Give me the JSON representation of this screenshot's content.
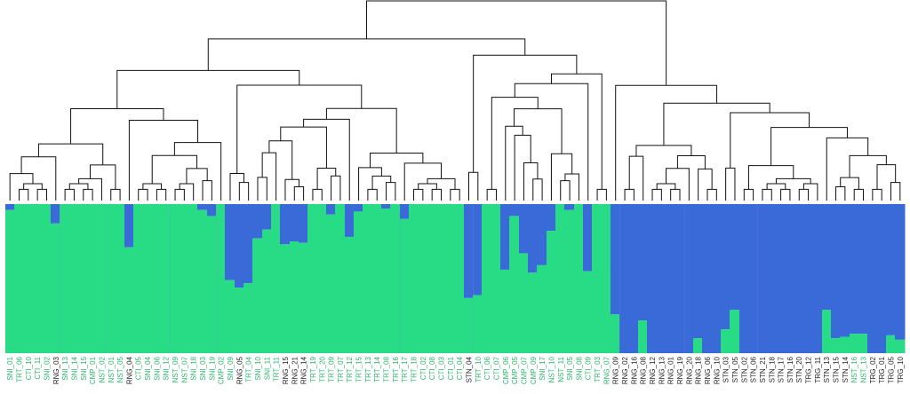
{
  "colors": {
    "green": "#27DC84",
    "blue": "#3A6AD8",
    "label_green": "#2BB56B",
    "label_black": "#222222",
    "tree": "#111111",
    "separator": "#6f8fd6"
  },
  "chart_data": {
    "type": "bar",
    "orientation": "stacked-admixture-with-dendrogram",
    "series": [
      {
        "name": "",
        "color": "#27DC84"
      },
      {
        "name": "",
        "color": "#3A6AD8"
      }
    ],
    "groups": [
      6,
      11,
      18,
      23,
      43,
      51,
      67,
      74,
      82
    ],
    "individuals": [
      {
        "label": "SNI_01",
        "blue": 0.04,
        "color": "green"
      },
      {
        "label": "TRT_06",
        "blue": 0.0,
        "color": "green"
      },
      {
        "label": "CTI_10",
        "blue": 0.0,
        "color": "green"
      },
      {
        "label": "CTI_11",
        "blue": 0.0,
        "color": "green"
      },
      {
        "label": "SNI_02",
        "blue": 0.0,
        "color": "green"
      },
      {
        "label": "RNG_03",
        "blue": 0.13,
        "color": "black"
      },
      {
        "label": "SNI_13",
        "blue": 0.0,
        "color": "green"
      },
      {
        "label": "SNI_14",
        "blue": 0.0,
        "color": "green"
      },
      {
        "label": "SNI_15",
        "blue": 0.0,
        "color": "green"
      },
      {
        "label": "CMP_01",
        "blue": 0.0,
        "color": "green"
      },
      {
        "label": "NST_02",
        "blue": 0.0,
        "color": "green"
      },
      {
        "label": "NST_01",
        "blue": 0.0,
        "color": "green"
      },
      {
        "label": "NST_05",
        "blue": 0.0,
        "color": "green"
      },
      {
        "label": "RNG_04",
        "blue": 0.29,
        "color": "black"
      },
      {
        "label": "CTI_05",
        "blue": 0.0,
        "color": "green"
      },
      {
        "label": "SNI_04",
        "blue": 0.0,
        "color": "green"
      },
      {
        "label": "SNI_06",
        "blue": 0.0,
        "color": "green"
      },
      {
        "label": "SNI_12",
        "blue": 0.0,
        "color": "green"
      },
      {
        "label": "NST_09",
        "blue": 0.0,
        "color": "green"
      },
      {
        "label": "NST_07",
        "blue": 0.0,
        "color": "green"
      },
      {
        "label": "SNI_18",
        "blue": 0.0,
        "color": "green"
      },
      {
        "label": "SNI_03",
        "blue": 0.04,
        "color": "green"
      },
      {
        "label": "SNI_19",
        "blue": 0.08,
        "color": "green"
      },
      {
        "label": "CMP_02",
        "blue": 0.0,
        "color": "green"
      },
      {
        "label": "SNI_09",
        "blue": 0.51,
        "color": "green"
      },
      {
        "label": "RNG_05",
        "blue": 0.56,
        "color": "black"
      },
      {
        "label": "TRT_04",
        "blue": 0.53,
        "color": "green"
      },
      {
        "label": "SNI_10",
        "blue": 0.23,
        "color": "green"
      },
      {
        "label": "SNI_11",
        "blue": 0.17,
        "color": "green"
      },
      {
        "label": "TRT_11",
        "blue": 0.0,
        "color": "green"
      },
      {
        "label": "RNG_15",
        "blue": 0.27,
        "color": "black"
      },
      {
        "label": "RNG_21",
        "blue": 0.25,
        "color": "black"
      },
      {
        "label": "RNG_14",
        "blue": 0.26,
        "color": "black"
      },
      {
        "label": "TRT_19",
        "blue": 0.0,
        "color": "green"
      },
      {
        "label": "TRT_20",
        "blue": 0.0,
        "color": "green"
      },
      {
        "label": "TRT_09",
        "blue": 0.07,
        "color": "green"
      },
      {
        "label": "TRT_07",
        "blue": 0.0,
        "color": "green"
      },
      {
        "label": "TRT_12",
        "blue": 0.22,
        "color": "green"
      },
      {
        "label": "TRT_15",
        "blue": 0.05,
        "color": "green"
      },
      {
        "label": "TRT_13",
        "blue": 0.0,
        "color": "green"
      },
      {
        "label": "TRT_14",
        "blue": 0.0,
        "color": "green"
      },
      {
        "label": "TRT_08",
        "blue": 0.03,
        "color": "green"
      },
      {
        "label": "TRT_16",
        "blue": 0.0,
        "color": "green"
      },
      {
        "label": "TRT_17",
        "blue": 0.1,
        "color": "green"
      },
      {
        "label": "TRT_18",
        "blue": 0.0,
        "color": "green"
      },
      {
        "label": "CTI_02",
        "blue": 0.0,
        "color": "green"
      },
      {
        "label": "CTI_08",
        "blue": 0.0,
        "color": "green"
      },
      {
        "label": "CTI_03",
        "blue": 0.0,
        "color": "green"
      },
      {
        "label": "CTI_01",
        "blue": 0.0,
        "color": "green"
      },
      {
        "label": "CTI_04",
        "blue": 0.0,
        "color": "green"
      },
      {
        "label": "STN_04",
        "blue": 0.63,
        "color": "black"
      },
      {
        "label": "TRT_10",
        "blue": 0.61,
        "color": "green"
      },
      {
        "label": "CTI_06",
        "blue": 0.0,
        "color": "green"
      },
      {
        "label": "CTI_07",
        "blue": 0.0,
        "color": "green"
      },
      {
        "label": "CMP_06",
        "blue": 0.44,
        "color": "green"
      },
      {
        "label": "CMP_05",
        "blue": 0.08,
        "color": "green"
      },
      {
        "label": "CMP_07",
        "blue": 0.33,
        "color": "green"
      },
      {
        "label": "CMP_09",
        "blue": 0.46,
        "color": "green"
      },
      {
        "label": "SNI_17",
        "blue": 0.41,
        "color": "green"
      },
      {
        "label": "NST_10",
        "blue": 0.18,
        "color": "green"
      },
      {
        "label": "NST_11",
        "blue": 0.0,
        "color": "green"
      },
      {
        "label": "SNI_05",
        "blue": 0.04,
        "color": "green"
      },
      {
        "label": "SNI_08",
        "blue": 0.0,
        "color": "green"
      },
      {
        "label": "CTI_09",
        "blue": 0.45,
        "color": "green"
      },
      {
        "label": "TRT_03",
        "blue": 0.0,
        "color": "green"
      },
      {
        "label": "RNG_07",
        "blue": 0.0,
        "color": "green"
      },
      {
        "label": "RNG_09",
        "blue": 0.74,
        "color": "black"
      },
      {
        "label": "RNG_02",
        "blue": 1.0,
        "color": "black"
      },
      {
        "label": "RNG_16",
        "blue": 1.0,
        "color": "black"
      },
      {
        "label": "RNG_08",
        "blue": 0.78,
        "color": "black"
      },
      {
        "label": "RNG_12",
        "blue": 1.0,
        "color": "black"
      },
      {
        "label": "RNG_13",
        "blue": 1.0,
        "color": "black"
      },
      {
        "label": "RNG_01",
        "blue": 1.0,
        "color": "black"
      },
      {
        "label": "RNG_19",
        "blue": 1.0,
        "color": "black"
      },
      {
        "label": "RNG_20",
        "blue": 1.0,
        "color": "black"
      },
      {
        "label": "RNG_18",
        "blue": 0.9,
        "color": "black"
      },
      {
        "label": "RNG_06",
        "blue": 1.0,
        "color": "black"
      },
      {
        "label": "RNG_10",
        "blue": 1.0,
        "color": "black"
      },
      {
        "label": "STN_03",
        "blue": 0.84,
        "color": "black"
      },
      {
        "label": "STN_05",
        "blue": 0.71,
        "color": "black"
      },
      {
        "label": "STN_02",
        "blue": 1.0,
        "color": "black"
      },
      {
        "label": "STN_06",
        "blue": 1.0,
        "color": "black"
      },
      {
        "label": "STN_21",
        "blue": 1.0,
        "color": "black"
      },
      {
        "label": "STN_18",
        "blue": 1.0,
        "color": "black"
      },
      {
        "label": "STN_17",
        "blue": 1.0,
        "color": "black"
      },
      {
        "label": "STN_16",
        "blue": 1.0,
        "color": "black"
      },
      {
        "label": "STN_20",
        "blue": 1.0,
        "color": "black"
      },
      {
        "label": "TRG_12",
        "blue": 1.0,
        "color": "black"
      },
      {
        "label": "TRG_11",
        "blue": 1.0,
        "color": "black"
      },
      {
        "label": "STN_13",
        "blue": 0.71,
        "color": "black"
      },
      {
        "label": "STN_15",
        "blue": 0.9,
        "color": "black"
      },
      {
        "label": "STN_14",
        "blue": 0.89,
        "color": "black"
      },
      {
        "label": "NST_16",
        "blue": 0.87,
        "color": "green"
      },
      {
        "label": "NST_13",
        "blue": 0.87,
        "color": "green"
      },
      {
        "label": "TRG_02",
        "blue": 1.0,
        "color": "black"
      },
      {
        "label": "TRG_01",
        "blue": 1.0,
        "color": "black"
      },
      {
        "label": "TRG_05",
        "blue": 0.88,
        "color": "black"
      },
      {
        "label": "TRG_10",
        "blue": 0.91,
        "color": "black"
      }
    ]
  }
}
